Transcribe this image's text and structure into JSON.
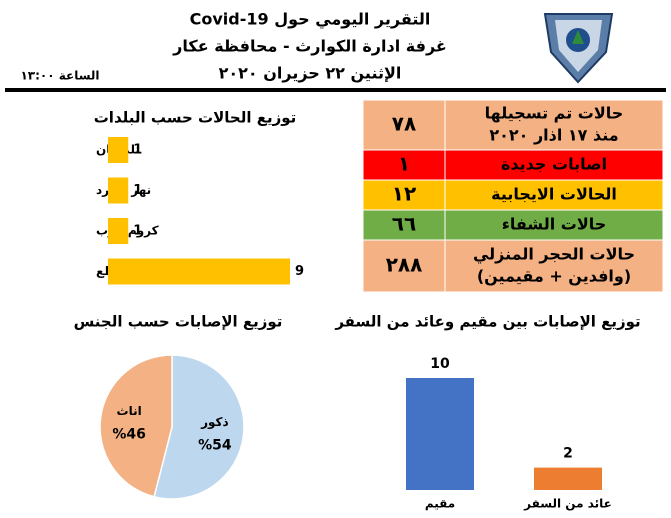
{
  "header": {
    "title": "التقرير اليومي حول Covid-19",
    "subtitle": "غرفة ادارة الكوارث - محافظة عكار",
    "date": "الإثنين ٢٢ حزيران ٢٠٢٠",
    "time": "الساعة ١٣:٠٠"
  },
  "table": {
    "rows": [
      {
        "label": [
          "حالات تم تسجيلها",
          "منذ ١٧ اذار ٢٠٢٠"
        ],
        "value": "٧٨",
        "color": "#f4b183"
      },
      {
        "label": [
          "اصابات جديدة"
        ],
        "value": "١",
        "color": "#ff0000"
      },
      {
        "label": [
          "الحالات الايجابية"
        ],
        "value": "١٢",
        "color": "#ffc000"
      },
      {
        "label": [
          "حالات الشفاء"
        ],
        "value": "٦٦",
        "color": "#70ad47"
      },
      {
        "label": [
          "حالات الحجر المنزلي",
          "(وافدين + مقيمين)"
        ],
        "value": "٢٨٨",
        "color": "#f4b183"
      }
    ]
  },
  "chart_data": [
    {
      "type": "hbar",
      "title": "توزيع الحالات حسب البلدات",
      "categories": [
        "تلمعيان",
        "نهر البارد",
        "كروم عرب",
        "جديدة القيطع"
      ],
      "values": [
        1,
        1,
        1,
        9
      ],
      "color": "#ffc000"
    },
    {
      "type": "pie",
      "title": "توزيع الإصابات حسب الجنس",
      "categories": [
        "ذكور",
        "اناث"
      ],
      "values": [
        54,
        46
      ],
      "value_labels": [
        "%54",
        "%46"
      ],
      "colors": [
        "#bdd7ee",
        "#f4b183"
      ]
    },
    {
      "type": "bar",
      "title": "توزيع الإصابات بين مقيم وعائد من السفر",
      "categories": [
        "مقيم",
        "عائد من السفر"
      ],
      "values": [
        10,
        2
      ],
      "colors": [
        "#4472c4",
        "#ed7d31"
      ]
    }
  ]
}
